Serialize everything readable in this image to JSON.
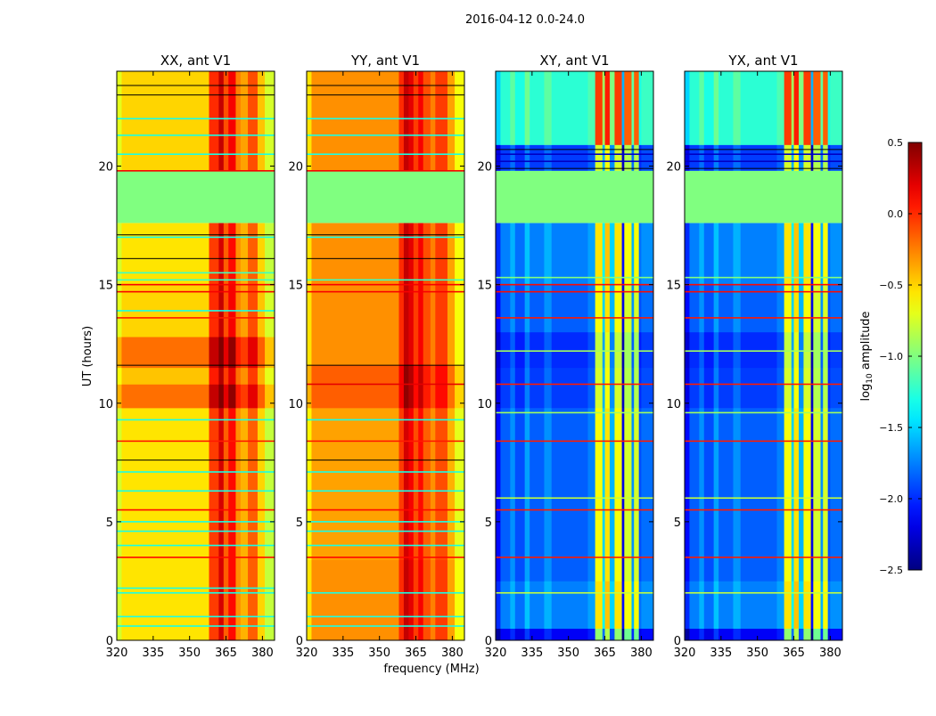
{
  "chart_data": {
    "type": "heatmap",
    "title": "2016-04-12 0.0-24.0",
    "xlabel": "frequency (MHz)",
    "ylabel": "UT (hours)",
    "xlim": [
      320,
      385
    ],
    "ylim": [
      0,
      24
    ],
    "xticks": [
      "320",
      "335",
      "350",
      "365",
      "380"
    ],
    "xtick_values": [
      320,
      335,
      350,
      365,
      380
    ],
    "yticks": [
      "0",
      "5",
      "10",
      "15",
      "20"
    ],
    "ytick_values": [
      0,
      5,
      10,
      15,
      20
    ],
    "colorbar": {
      "label": "log10 amplitude",
      "label_main": "log",
      "label_sub": "10",
      "label_rest": " amplitude",
      "range": [
        -2.5,
        0.5
      ],
      "ticks": [
        "0.5",
        "0.0",
        "−0.5",
        "−1.0",
        "−1.5",
        "−2.0",
        "−2.5"
      ],
      "tick_values": [
        0.5,
        0.0,
        -0.5,
        -1.0,
        -1.5,
        -2.0,
        -2.5
      ],
      "colormap": "jet"
    },
    "flagged_value": -1.0,
    "panels": [
      {
        "title": "XX, ant V1",
        "freq_bands": [
          [
            320,
            322,
            -0.75
          ],
          [
            322,
            358,
            -0.55
          ],
          [
            358,
            362,
            -0.05
          ],
          [
            362,
            364,
            0.25
          ],
          [
            364,
            366,
            -0.15
          ],
          [
            366,
            369,
            0.1
          ],
          [
            369,
            371,
            -0.3
          ],
          [
            371,
            374,
            -0.4
          ],
          [
            374,
            378,
            -0.15
          ],
          [
            378,
            381,
            -0.5
          ],
          [
            381,
            385,
            -0.8
          ]
        ],
        "time_bands": [
          [
            0,
            9.8,
            0
          ],
          [
            9.8,
            10.8,
            0.35
          ],
          [
            10.8,
            11.5,
            0.1
          ],
          [
            11.5,
            12.8,
            0.35
          ],
          [
            12.8,
            15,
            0.05
          ],
          [
            15,
            17.6,
            0
          ],
          [
            19.8,
            24,
            0.05
          ]
        ],
        "flagged": [
          [
            17.6,
            19.8
          ]
        ],
        "lines": [
          [
            3.5,
            0.1
          ],
          [
            5.5,
            0.1
          ],
          [
            8.4,
            0.05
          ],
          [
            13.6,
            0.05
          ],
          [
            14.7,
            0.15
          ],
          [
            15.0,
            0.15
          ],
          [
            19.8,
            0.15
          ],
          [
            0.6,
            -1.3
          ],
          [
            1.0,
            -1.3
          ],
          [
            2.0,
            -1.3
          ],
          [
            2.2,
            -1.3
          ],
          [
            4.0,
            -1.3
          ],
          [
            4.6,
            -1.3
          ],
          [
            5.0,
            -1.3
          ],
          [
            6.3,
            -1.3
          ],
          [
            7.1,
            -1.3
          ],
          [
            9.3,
            -1.3
          ],
          [
            13.9,
            -1.3
          ],
          [
            15.2,
            -1.2
          ],
          [
            15.5,
            -1.2
          ],
          [
            17.0,
            -1.3
          ],
          [
            20.5,
            -1.3
          ],
          [
            21.3,
            -1.3
          ],
          [
            22.0,
            -1.3
          ]
        ],
        "black_lines": [
          7.6,
          11.6,
          16.1,
          17.1,
          23.0,
          23.4
        ]
      },
      {
        "title": "YY, ant V1",
        "freq_bands": [
          [
            320,
            322,
            -0.6
          ],
          [
            322,
            358,
            -0.35
          ],
          [
            358,
            360,
            -0.05
          ],
          [
            360,
            362,
            0.25
          ],
          [
            362,
            364,
            0.15
          ],
          [
            364,
            366,
            -0.1
          ],
          [
            366,
            368,
            0.1
          ],
          [
            368,
            371,
            -0.15
          ],
          [
            371,
            373,
            -0.3
          ],
          [
            373,
            378,
            -0.1
          ],
          [
            378,
            381,
            -0.4
          ],
          [
            381,
            385,
            -0.7
          ]
        ],
        "time_bands": [
          [
            0,
            3.4,
            0.05
          ],
          [
            3.4,
            9.8,
            0
          ],
          [
            9.8,
            11.6,
            0.2
          ],
          [
            11.6,
            15,
            0.05
          ],
          [
            15,
            17.6,
            0.05
          ],
          [
            19.8,
            24,
            0.05
          ]
        ],
        "flagged": [
          [
            17.6,
            19.8
          ]
        ],
        "lines": [
          [
            3.5,
            0.1
          ],
          [
            5.5,
            0.1
          ],
          [
            8.4,
            0.05
          ],
          [
            10.8,
            0.2
          ],
          [
            14.7,
            0.15
          ],
          [
            15.0,
            0.15
          ],
          [
            19.8,
            0.15
          ],
          [
            0.6,
            -1.3
          ],
          [
            1.0,
            -1.3
          ],
          [
            2.0,
            -1.3
          ],
          [
            4.0,
            -1.3
          ],
          [
            4.6,
            -1.3
          ],
          [
            5.0,
            -1.3
          ],
          [
            6.3,
            -1.3
          ],
          [
            7.1,
            -1.3
          ],
          [
            9.3,
            -1.3
          ],
          [
            15.2,
            -1.2
          ],
          [
            17.0,
            -1.3
          ],
          [
            20.5,
            -1.3
          ],
          [
            21.3,
            -1.3
          ],
          [
            22.0,
            -1.3
          ]
        ],
        "black_lines": [
          7.6,
          11.6,
          16.1,
          17.1,
          23.0,
          23.4
        ]
      },
      {
        "title": "XY, ant V1",
        "freq_bands": [
          [
            320,
            322,
            -2.1
          ],
          [
            322,
            326,
            -1.85
          ],
          [
            326,
            328,
            -1.7
          ],
          [
            328,
            332,
            -1.9
          ],
          [
            332,
            334,
            -1.65
          ],
          [
            334,
            340,
            -1.85
          ],
          [
            340,
            343,
            -1.7
          ],
          [
            343,
            358,
            -1.85
          ],
          [
            358,
            361,
            -1.75
          ],
          [
            361,
            364,
            -0.65
          ],
          [
            364,
            365,
            -1.5
          ],
          [
            365,
            367,
            -0.55
          ],
          [
            367,
            369,
            -1.6
          ],
          [
            369,
            372,
            -0.65
          ],
          [
            372,
            373,
            -2.2
          ],
          [
            373,
            376,
            -0.75
          ],
          [
            376,
            377,
            -1.7
          ],
          [
            377,
            379,
            -0.75
          ],
          [
            379,
            380,
            -1.9
          ],
          [
            380,
            385,
            -1.8
          ]
        ],
        "time_bands": [
          [
            0,
            0.5,
            -0.3
          ],
          [
            0.5,
            2.5,
            0.1
          ],
          [
            2.5,
            9.8,
            0
          ],
          [
            9.8,
            11.5,
            -0.1
          ],
          [
            11.5,
            13,
            -0.15
          ],
          [
            13,
            15,
            0
          ],
          [
            15,
            17.6,
            0.1
          ],
          [
            19.8,
            20.9,
            -0.1
          ],
          [
            20.9,
            24,
            0.6
          ]
        ],
        "flagged": [
          [
            17.6,
            19.8
          ]
        ],
        "lines": [
          [
            3.5,
            0.05
          ],
          [
            5.5,
            0.05
          ],
          [
            8.4,
            0.05
          ],
          [
            10.8,
            0.05
          ],
          [
            13.6,
            0.05
          ],
          [
            14.7,
            0.1
          ],
          [
            15.0,
            0.1
          ],
          [
            2.0,
            -0.8
          ],
          [
            6.0,
            -0.8
          ],
          [
            9.6,
            -0.9
          ],
          [
            12.2,
            -0.9
          ],
          [
            15.3,
            -1.0
          ],
          [
            20.5,
            -2.3
          ],
          [
            20.2,
            -2.3
          ]
        ],
        "black_lines": [
          19.9,
          20.7
        ]
      },
      {
        "title": "YX, ant V1",
        "freq_bands": [
          [
            320,
            322,
            -2.1
          ],
          [
            322,
            326,
            -1.85
          ],
          [
            326,
            328,
            -1.7
          ],
          [
            328,
            332,
            -1.9
          ],
          [
            332,
            334,
            -1.65
          ],
          [
            334,
            340,
            -1.85
          ],
          [
            340,
            343,
            -1.7
          ],
          [
            343,
            358,
            -1.85
          ],
          [
            358,
            361,
            -1.75
          ],
          [
            361,
            364,
            -0.65
          ],
          [
            364,
            365,
            -1.5
          ],
          [
            365,
            367,
            -0.55
          ],
          [
            367,
            369,
            -1.6
          ],
          [
            369,
            372,
            -0.65
          ],
          [
            372,
            373,
            -2.2
          ],
          [
            373,
            376,
            -0.75
          ],
          [
            376,
            377,
            -1.7
          ],
          [
            377,
            379,
            -0.75
          ],
          [
            379,
            380,
            -1.9
          ],
          [
            380,
            385,
            -1.8
          ]
        ],
        "time_bands": [
          [
            0,
            0.5,
            -0.3
          ],
          [
            0.5,
            2.5,
            0.1
          ],
          [
            2.5,
            9.8,
            0
          ],
          [
            9.8,
            11.5,
            -0.1
          ],
          [
            11.5,
            13,
            -0.15
          ],
          [
            13,
            15,
            0
          ],
          [
            15,
            17.6,
            0.1
          ],
          [
            19.8,
            20.9,
            -0.1
          ],
          [
            20.9,
            24,
            0.6
          ]
        ],
        "flagged": [
          [
            17.6,
            19.8
          ]
        ],
        "lines": [
          [
            3.5,
            0.05
          ],
          [
            5.5,
            0.05
          ],
          [
            8.4,
            0.05
          ],
          [
            10.8,
            0.05
          ],
          [
            13.6,
            0.05
          ],
          [
            14.7,
            0.1
          ],
          [
            15.0,
            0.1
          ],
          [
            2.0,
            -0.8
          ],
          [
            6.0,
            -0.8
          ],
          [
            9.6,
            -0.9
          ],
          [
            12.2,
            -0.9
          ],
          [
            15.3,
            -1.0
          ],
          [
            20.5,
            -2.3
          ],
          [
            20.2,
            -2.3
          ]
        ],
        "black_lines": [
          19.9,
          20.7
        ]
      }
    ]
  }
}
